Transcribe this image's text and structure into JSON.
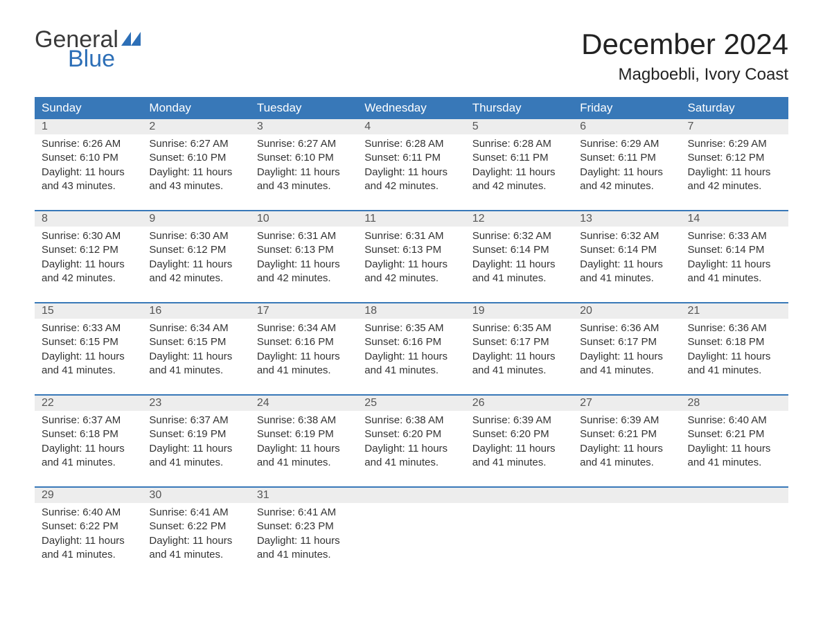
{
  "logo": {
    "line1": "General",
    "line2": "Blue",
    "flag_color": "#2d6fb7"
  },
  "title": "December 2024",
  "location": "Magboebli, Ivory Coast",
  "header_bg": "#3878b8",
  "header_fg": "#ffffff",
  "daynum_bg": "#ededed",
  "week_border": "#3878b8",
  "day_headers": [
    "Sunday",
    "Monday",
    "Tuesday",
    "Wednesday",
    "Thursday",
    "Friday",
    "Saturday"
  ],
  "weeks": [
    [
      {
        "n": "1",
        "sunrise": "6:26 AM",
        "sunset": "6:10 PM",
        "daylight": "11 hours and 43 minutes."
      },
      {
        "n": "2",
        "sunrise": "6:27 AM",
        "sunset": "6:10 PM",
        "daylight": "11 hours and 43 minutes."
      },
      {
        "n": "3",
        "sunrise": "6:27 AM",
        "sunset": "6:10 PM",
        "daylight": "11 hours and 43 minutes."
      },
      {
        "n": "4",
        "sunrise": "6:28 AM",
        "sunset": "6:11 PM",
        "daylight": "11 hours and 42 minutes."
      },
      {
        "n": "5",
        "sunrise": "6:28 AM",
        "sunset": "6:11 PM",
        "daylight": "11 hours and 42 minutes."
      },
      {
        "n": "6",
        "sunrise": "6:29 AM",
        "sunset": "6:11 PM",
        "daylight": "11 hours and 42 minutes."
      },
      {
        "n": "7",
        "sunrise": "6:29 AM",
        "sunset": "6:12 PM",
        "daylight": "11 hours and 42 minutes."
      }
    ],
    [
      {
        "n": "8",
        "sunrise": "6:30 AM",
        "sunset": "6:12 PM",
        "daylight": "11 hours and 42 minutes."
      },
      {
        "n": "9",
        "sunrise": "6:30 AM",
        "sunset": "6:12 PM",
        "daylight": "11 hours and 42 minutes."
      },
      {
        "n": "10",
        "sunrise": "6:31 AM",
        "sunset": "6:13 PM",
        "daylight": "11 hours and 42 minutes."
      },
      {
        "n": "11",
        "sunrise": "6:31 AM",
        "sunset": "6:13 PM",
        "daylight": "11 hours and 42 minutes."
      },
      {
        "n": "12",
        "sunrise": "6:32 AM",
        "sunset": "6:14 PM",
        "daylight": "11 hours and 41 minutes."
      },
      {
        "n": "13",
        "sunrise": "6:32 AM",
        "sunset": "6:14 PM",
        "daylight": "11 hours and 41 minutes."
      },
      {
        "n": "14",
        "sunrise": "6:33 AM",
        "sunset": "6:14 PM",
        "daylight": "11 hours and 41 minutes."
      }
    ],
    [
      {
        "n": "15",
        "sunrise": "6:33 AM",
        "sunset": "6:15 PM",
        "daylight": "11 hours and 41 minutes."
      },
      {
        "n": "16",
        "sunrise": "6:34 AM",
        "sunset": "6:15 PM",
        "daylight": "11 hours and 41 minutes."
      },
      {
        "n": "17",
        "sunrise": "6:34 AM",
        "sunset": "6:16 PM",
        "daylight": "11 hours and 41 minutes."
      },
      {
        "n": "18",
        "sunrise": "6:35 AM",
        "sunset": "6:16 PM",
        "daylight": "11 hours and 41 minutes."
      },
      {
        "n": "19",
        "sunrise": "6:35 AM",
        "sunset": "6:17 PM",
        "daylight": "11 hours and 41 minutes."
      },
      {
        "n": "20",
        "sunrise": "6:36 AM",
        "sunset": "6:17 PM",
        "daylight": "11 hours and 41 minutes."
      },
      {
        "n": "21",
        "sunrise": "6:36 AM",
        "sunset": "6:18 PM",
        "daylight": "11 hours and 41 minutes."
      }
    ],
    [
      {
        "n": "22",
        "sunrise": "6:37 AM",
        "sunset": "6:18 PM",
        "daylight": "11 hours and 41 minutes."
      },
      {
        "n": "23",
        "sunrise": "6:37 AM",
        "sunset": "6:19 PM",
        "daylight": "11 hours and 41 minutes."
      },
      {
        "n": "24",
        "sunrise": "6:38 AM",
        "sunset": "6:19 PM",
        "daylight": "11 hours and 41 minutes."
      },
      {
        "n": "25",
        "sunrise": "6:38 AM",
        "sunset": "6:20 PM",
        "daylight": "11 hours and 41 minutes."
      },
      {
        "n": "26",
        "sunrise": "6:39 AM",
        "sunset": "6:20 PM",
        "daylight": "11 hours and 41 minutes."
      },
      {
        "n": "27",
        "sunrise": "6:39 AM",
        "sunset": "6:21 PM",
        "daylight": "11 hours and 41 minutes."
      },
      {
        "n": "28",
        "sunrise": "6:40 AM",
        "sunset": "6:21 PM",
        "daylight": "11 hours and 41 minutes."
      }
    ],
    [
      {
        "n": "29",
        "sunrise": "6:40 AM",
        "sunset": "6:22 PM",
        "daylight": "11 hours and 41 minutes."
      },
      {
        "n": "30",
        "sunrise": "6:41 AM",
        "sunset": "6:22 PM",
        "daylight": "11 hours and 41 minutes."
      },
      {
        "n": "31",
        "sunrise": "6:41 AM",
        "sunset": "6:23 PM",
        "daylight": "11 hours and 41 minutes."
      },
      null,
      null,
      null,
      null
    ]
  ],
  "labels": {
    "sunrise_prefix": "Sunrise: ",
    "sunset_prefix": "Sunset: ",
    "daylight_prefix": "Daylight: "
  }
}
